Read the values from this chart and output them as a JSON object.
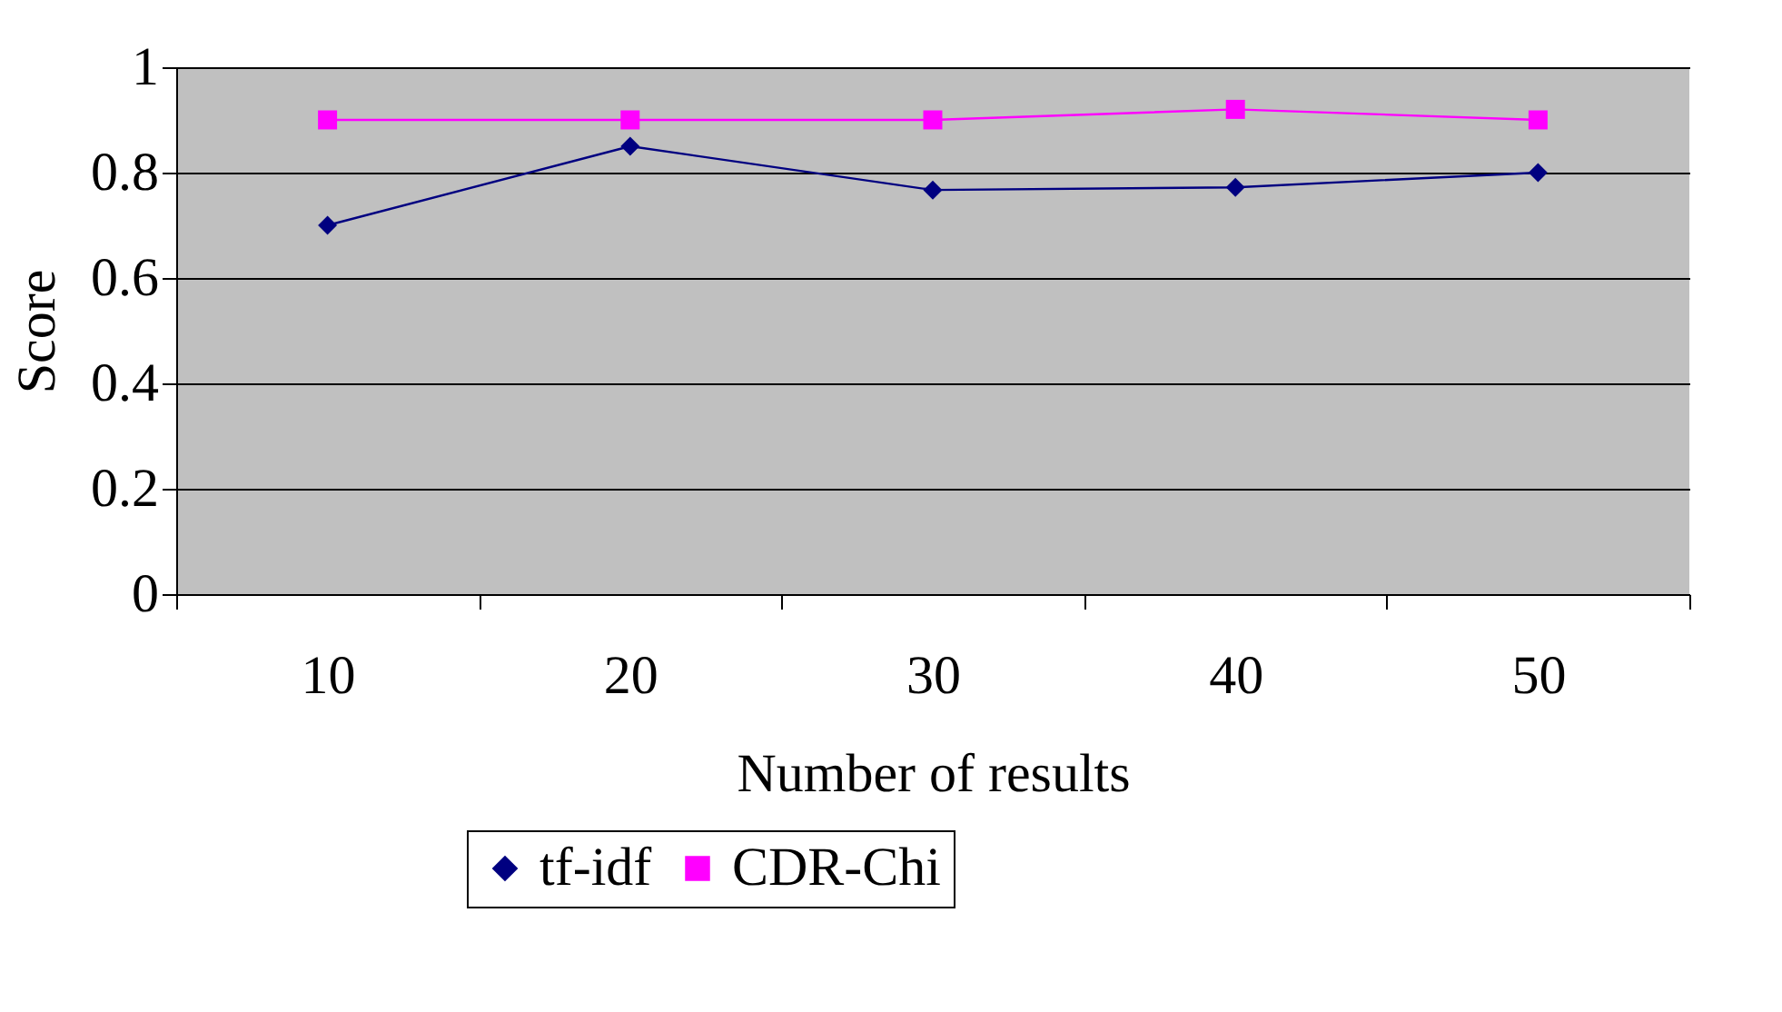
{
  "chart_data": {
    "type": "line",
    "xlabel": "Number of results",
    "ylabel": "Score",
    "categories": [
      "10",
      "20",
      "30",
      "40",
      "50"
    ],
    "series": [
      {
        "name": "tf-idf",
        "color": "#000080",
        "marker": "diamond",
        "values": [
          0.7,
          0.85,
          0.767,
          0.772,
          0.8
        ]
      },
      {
        "name": "CDR-Chi",
        "color": "#ff00ff",
        "marker": "square",
        "values": [
          0.9,
          0.9,
          0.9,
          0.92,
          0.9
        ]
      }
    ],
    "ylim": [
      0,
      1
    ],
    "yticks": [
      0,
      0.2,
      0.4,
      0.6,
      0.8,
      1
    ],
    "grid": "y",
    "legend": "bottom",
    "line_style": "solid"
  }
}
